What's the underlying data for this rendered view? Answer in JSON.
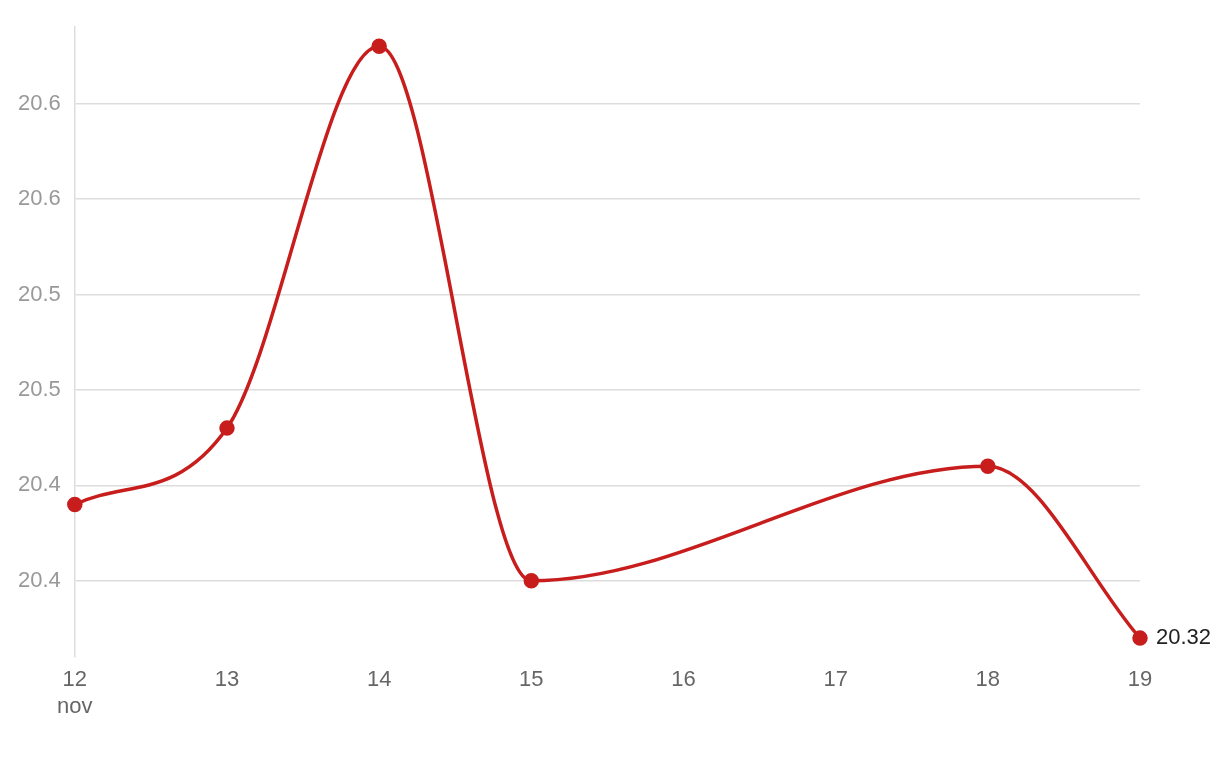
{
  "chart_data": {
    "type": "line",
    "x": [
      12,
      13,
      14,
      15,
      18,
      19
    ],
    "series": [
      {
        "color": "#c71e1d",
        "values": [
          20.39,
          20.43,
          20.63,
          20.35,
          20.41,
          20.32
        ],
        "value_labels": [
          null,
          null,
          null,
          null,
          null,
          "20.32"
        ]
      }
    ],
    "xlim": [
      12,
      19
    ],
    "xticks": [
      {
        "value": 12,
        "label": "12\nnov"
      },
      13,
      14,
      15,
      16,
      17,
      18,
      19
    ],
    "yticks": [
      {
        "value": 20.35,
        "label": "20.4"
      },
      {
        "value": 20.4,
        "label": "20.4"
      },
      {
        "value": 20.45,
        "label": "20.5"
      },
      {
        "value": 20.5,
        "label": "20.5"
      },
      {
        "value": 20.55,
        "label": "20.6"
      },
      {
        "value": 20.6,
        "label": "20.6"
      }
    ],
    "ylim": [
      20.31,
      20.64
    ],
    "grid": "y",
    "marker": "circle",
    "line_style": "solid",
    "legend": false
  }
}
